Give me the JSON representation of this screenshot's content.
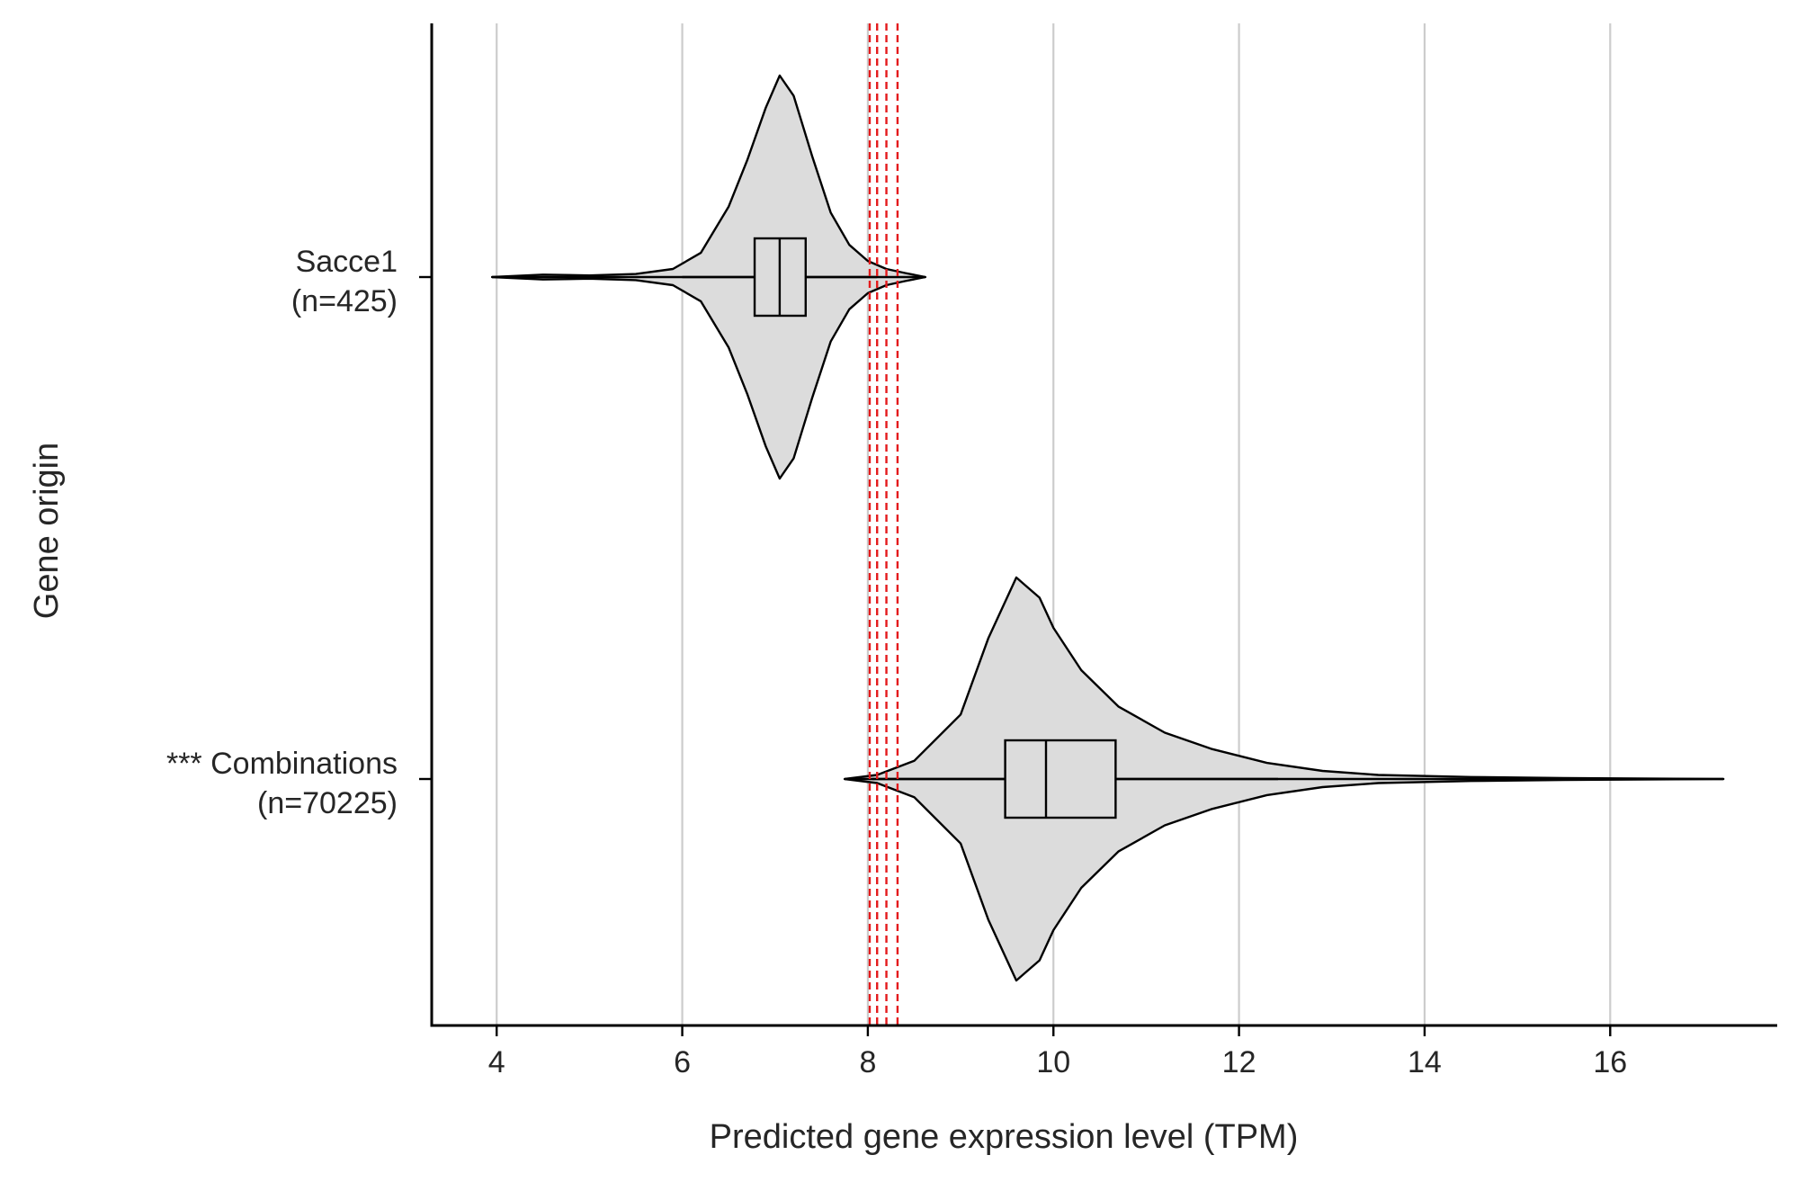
{
  "chart_data": {
    "type": "violin",
    "orientation": "horizontal",
    "xlabel": "Predicted gene expression level (TPM)",
    "ylabel": "Gene origin",
    "xlim": [
      3.3,
      17.8
    ],
    "x_ticks": [
      4,
      6,
      8,
      10,
      12,
      14,
      16
    ],
    "grid": "vertical",
    "categories": [
      {
        "label_line1": "Sacce1",
        "label_line2": "(n=425)",
        "n": 425,
        "color": "#dcdcdc",
        "box": {
          "whisker_low": 6.0,
          "q1": 6.78,
          "median": 7.05,
          "q3": 7.33,
          "whisker_high": 8.1
        },
        "range": [
          3.95,
          8.62
        ],
        "density": [
          [
            3.95,
            0.0
          ],
          [
            4.5,
            0.012
          ],
          [
            5.0,
            0.008
          ],
          [
            5.5,
            0.015
          ],
          [
            5.9,
            0.04
          ],
          [
            6.2,
            0.12
          ],
          [
            6.5,
            0.35
          ],
          [
            6.7,
            0.58
          ],
          [
            6.9,
            0.84
          ],
          [
            7.05,
            1.0
          ],
          [
            7.2,
            0.9
          ],
          [
            7.4,
            0.6
          ],
          [
            7.6,
            0.32
          ],
          [
            7.8,
            0.16
          ],
          [
            8.0,
            0.08
          ],
          [
            8.2,
            0.04
          ],
          [
            8.4,
            0.02
          ],
          [
            8.62,
            0.0
          ]
        ]
      },
      {
        "label_line1": "*** Combinations",
        "label_line2": "(n=70225)",
        "n": 70225,
        "color": "#dcdcdc",
        "box": {
          "whisker_low": 8.05,
          "q1": 9.48,
          "median": 9.92,
          "q3": 10.67,
          "whisker_high": 12.42
        },
        "range": [
          7.75,
          17.22
        ],
        "density": [
          [
            7.75,
            0.0
          ],
          [
            8.1,
            0.02
          ],
          [
            8.5,
            0.09
          ],
          [
            9.0,
            0.32
          ],
          [
            9.3,
            0.7
          ],
          [
            9.6,
            1.0
          ],
          [
            9.85,
            0.9
          ],
          [
            10.0,
            0.75
          ],
          [
            10.3,
            0.54
          ],
          [
            10.7,
            0.36
          ],
          [
            11.2,
            0.23
          ],
          [
            11.7,
            0.15
          ],
          [
            12.3,
            0.08
          ],
          [
            12.9,
            0.04
          ],
          [
            13.5,
            0.02
          ],
          [
            14.5,
            0.01
          ],
          [
            15.5,
            0.005
          ],
          [
            17.22,
            0.0
          ]
        ]
      }
    ],
    "reference_lines": {
      "style": "dashed",
      "color": "#e41a1c",
      "x_values": [
        8.02,
        8.1,
        8.2,
        8.32
      ]
    }
  }
}
